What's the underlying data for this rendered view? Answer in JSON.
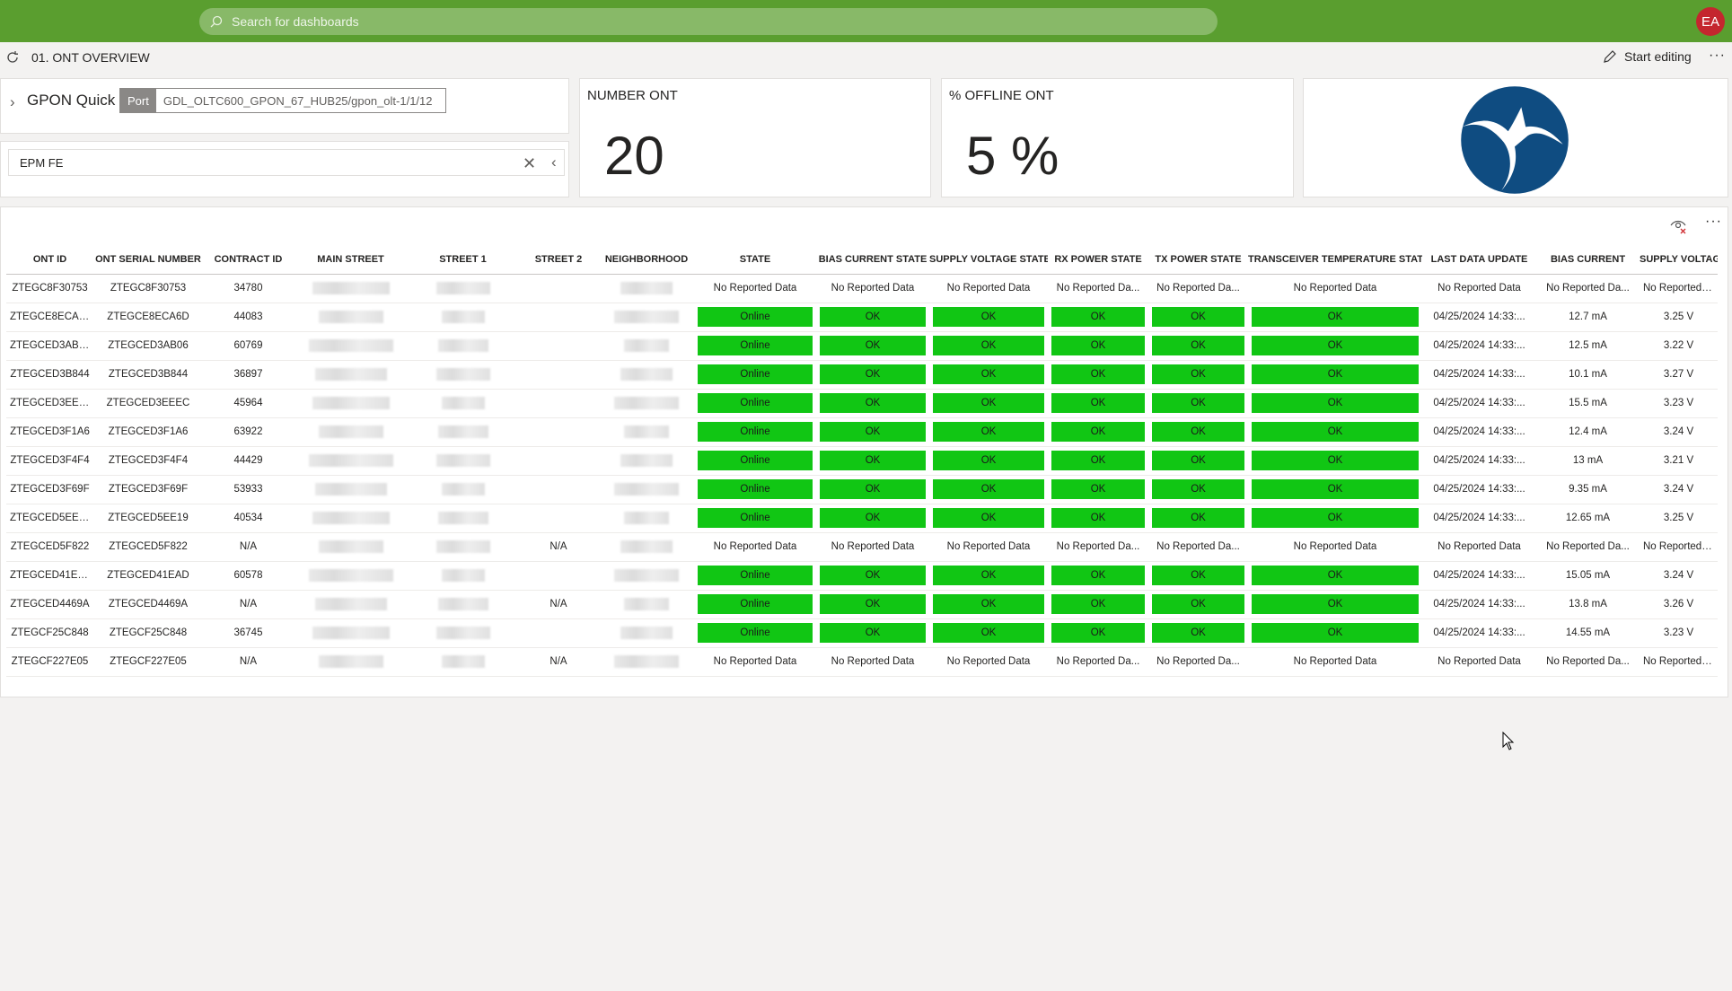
{
  "header": {
    "search_placeholder": "Search for dashboards",
    "avatar_initials": "EA"
  },
  "subbar": {
    "title": "01. ONT OVERVIEW",
    "edit_label": "Start editing",
    "more": "···"
  },
  "filter": {
    "title": "GPON Quick",
    "port_label": "Port",
    "port_value": "GDL_OLTC600_GPON_67_HUB25/gpon_olt-1/1/12",
    "epm_value": "EPM FE"
  },
  "kpis": [
    {
      "title": "NUMBER ONT",
      "value": "20"
    },
    {
      "title": "% OFFLINE ONT",
      "value": "5 %"
    }
  ],
  "table": {
    "columns": [
      "ONT ID",
      "ONT SERIAL NUMBER",
      "CONTRACT ID",
      "MAIN STREET",
      "STREET 1",
      "STREET 2",
      "NEIGHBORHOOD",
      "STATE",
      "BIAS CURRENT STATE",
      "SUPPLY VOLTAGE STATE",
      "RX POWER STATE",
      "TX POWER STATE",
      "TRANSCEIVER TEMPERATURE STATE",
      "LAST DATA UPDATE",
      "BIAS CURRENT",
      "SUPPLY VOLTAGE"
    ],
    "rows": [
      [
        "ZTEGC8F30753",
        "ZTEGC8F30753",
        "34780",
        "",
        "",
        "",
        "",
        "No Reported Data",
        "No Reported Data",
        "No Reported Data",
        "No Reported Da...",
        "No Reported Da...",
        "No Reported Data",
        "No Reported Data",
        "No Reported Da...",
        "No Reported Da..."
      ],
      [
        "ZTEGCE8ECA6D",
        "ZTEGCE8ECA6D",
        "44083",
        "",
        "",
        "",
        "",
        "Online",
        "OK",
        "OK",
        "OK",
        "OK",
        "OK",
        "04/25/2024 14:33:...",
        "12.7 mA",
        "3.25 V"
      ],
      [
        "ZTEGCED3AB06",
        "ZTEGCED3AB06",
        "60769",
        "",
        "",
        "",
        "",
        "Online",
        "OK",
        "OK",
        "OK",
        "OK",
        "OK",
        "04/25/2024 14:33:...",
        "12.5 mA",
        "3.22 V"
      ],
      [
        "ZTEGCED3B844",
        "ZTEGCED3B844",
        "36897",
        "",
        "",
        "",
        "",
        "Online",
        "OK",
        "OK",
        "OK",
        "OK",
        "OK",
        "04/25/2024 14:33:...",
        "10.1 mA",
        "3.27 V"
      ],
      [
        "ZTEGCED3EEEC",
        "ZTEGCED3EEEC",
        "45964",
        "",
        "",
        "",
        "",
        "Online",
        "OK",
        "OK",
        "OK",
        "OK",
        "OK",
        "04/25/2024 14:33:...",
        "15.5 mA",
        "3.23 V"
      ],
      [
        "ZTEGCED3F1A6",
        "ZTEGCED3F1A6",
        "63922",
        "",
        "",
        "",
        "",
        "Online",
        "OK",
        "OK",
        "OK",
        "OK",
        "OK",
        "04/25/2024 14:33:...",
        "12.4 mA",
        "3.24 V"
      ],
      [
        "ZTEGCED3F4F4",
        "ZTEGCED3F4F4",
        "44429",
        "",
        "",
        "",
        "",
        "Online",
        "OK",
        "OK",
        "OK",
        "OK",
        "OK",
        "04/25/2024 14:33:...",
        "13 mA",
        "3.21 V"
      ],
      [
        "ZTEGCED3F69F",
        "ZTEGCED3F69F",
        "53933",
        "",
        "",
        "",
        "",
        "Online",
        "OK",
        "OK",
        "OK",
        "OK",
        "OK",
        "04/25/2024 14:33:...",
        "9.35 mA",
        "3.24 V"
      ],
      [
        "ZTEGCED5EE19",
        "ZTEGCED5EE19",
        "40534",
        "",
        "",
        "",
        "",
        "Online",
        "OK",
        "OK",
        "OK",
        "OK",
        "OK",
        "04/25/2024 14:33:...",
        "12.65 mA",
        "3.25 V"
      ],
      [
        "ZTEGCED5F822",
        "ZTEGCED5F822",
        "N/A",
        "",
        "",
        "N/A",
        "",
        "No Reported Data",
        "No Reported Data",
        "No Reported Data",
        "No Reported Da...",
        "No Reported Da...",
        "No Reported Data",
        "No Reported Data",
        "No Reported Da...",
        "No Reported Da..."
      ],
      [
        "ZTEGCED41EAD",
        "ZTEGCED41EAD",
        "60578",
        "",
        "",
        "",
        "",
        "Online",
        "OK",
        "OK",
        "OK",
        "OK",
        "OK",
        "04/25/2024 14:33:...",
        "15.05 mA",
        "3.24 V"
      ],
      [
        "ZTEGCED4469A",
        "ZTEGCED4469A",
        "N/A",
        "",
        "",
        "N/A",
        "",
        "Online",
        "OK",
        "OK",
        "OK",
        "OK",
        "OK",
        "04/25/2024 14:33:...",
        "13.8 mA",
        "3.26 V"
      ],
      [
        "ZTEGCF25C848",
        "ZTEGCF25C848",
        "36745",
        "",
        "",
        "",
        "",
        "Online",
        "OK",
        "OK",
        "OK",
        "OK",
        "OK",
        "04/25/2024 14:33:...",
        "14.55 mA",
        "3.23 V"
      ],
      [
        "ZTEGCF227E05",
        "ZTEGCF227E05",
        "N/A",
        "",
        "",
        "N/A",
        "",
        "No Reported Data",
        "No Reported Data",
        "No Reported Data",
        "No Reported Da...",
        "No Reported Da...",
        "No Reported Data",
        "No Reported Data",
        "No Reported Da...",
        "No Reported Da..."
      ]
    ]
  },
  "colors": {
    "topbar": "#5a9e2f",
    "status_ok": "#11c614",
    "avatar": "#c4262e",
    "logo": "#0f4c81"
  }
}
